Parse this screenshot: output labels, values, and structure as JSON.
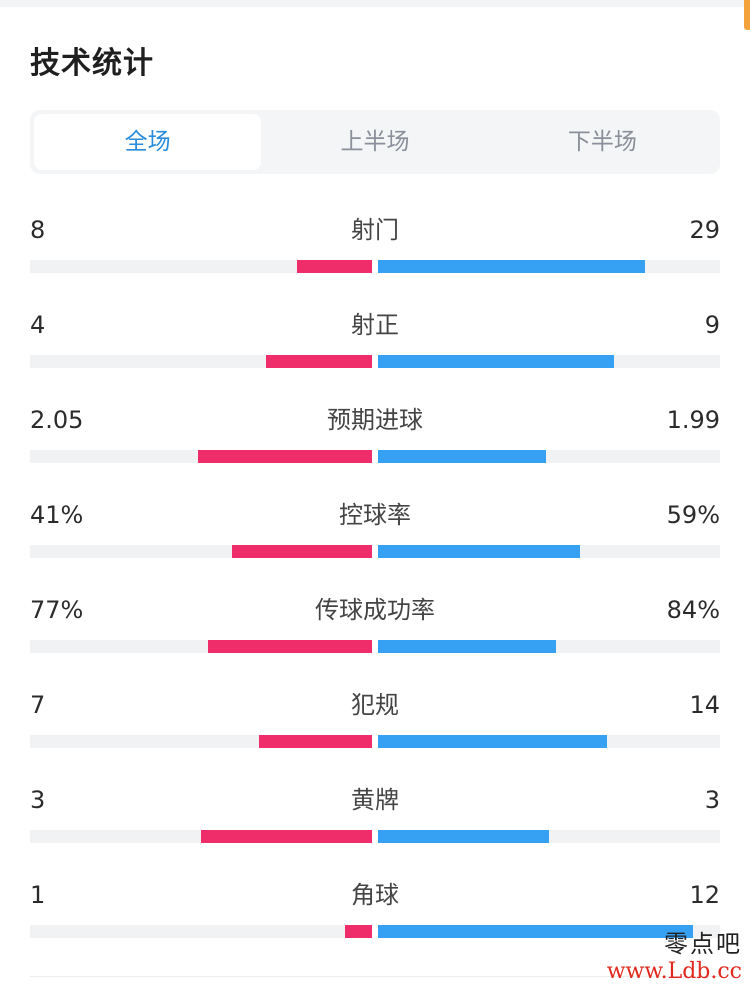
{
  "section": {
    "title": "技术统计"
  },
  "tabs": [
    {
      "label": "全场",
      "active": true
    },
    {
      "label": "上半场",
      "active": false
    },
    {
      "label": "下半场",
      "active": false
    }
  ],
  "colors": {
    "home": "#ef2d6b",
    "away": "#36a0f2",
    "active_tab": "#2a8cdb"
  },
  "stats": [
    {
      "label": "射门",
      "home": "8",
      "away": "29",
      "home_bar": 0.22,
      "away_bar": 0.78
    },
    {
      "label": "射正",
      "home": "4",
      "away": "9",
      "home_bar": 0.31,
      "away_bar": 0.69
    },
    {
      "label": "预期进球",
      "home": "2.05",
      "away": "1.99",
      "home_bar": 0.51,
      "away_bar": 0.49
    },
    {
      "label": "控球率",
      "home": "41%",
      "away": "59%",
      "home_bar": 0.41,
      "away_bar": 0.59
    },
    {
      "label": "传球成功率",
      "home": "77%",
      "away": "84%",
      "home_bar": 0.48,
      "away_bar": 0.52
    },
    {
      "label": "犯规",
      "home": "7",
      "away": "14",
      "home_bar": 0.33,
      "away_bar": 0.67
    },
    {
      "label": "黄牌",
      "home": "3",
      "away": "3",
      "home_bar": 0.5,
      "away_bar": 0.5
    },
    {
      "label": "角球",
      "home": "1",
      "away": "12",
      "home_bar": 0.08,
      "away_bar": 0.92
    }
  ],
  "watermark": {
    "text": "零点吧",
    "url": "www.Ldb.cc"
  }
}
